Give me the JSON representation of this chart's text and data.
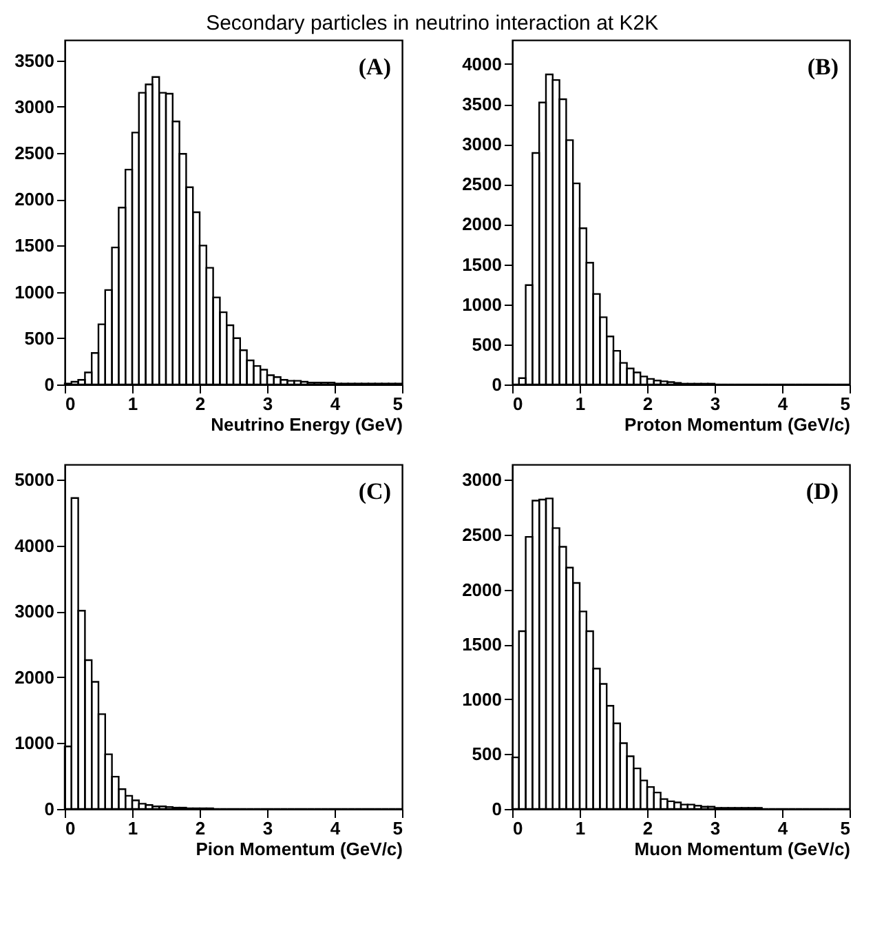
{
  "chart_data": [
    {
      "type": "histogram",
      "title": "Secondary particles in neutrino interaction at K2K",
      "xlabel": "Neutrino Energy  (GeV)",
      "annotations": [
        "(A)"
      ],
      "color": "#000000",
      "bins": [
        0,
        0.1,
        0.2,
        0.3,
        0.4,
        0.5,
        0.6,
        0.7,
        0.8,
        0.9,
        1,
        1.1,
        1.2,
        1.3,
        1.4,
        1.5,
        1.6,
        1.7,
        1.8,
        1.9,
        2,
        2.1,
        2.2,
        2.3,
        2.4,
        2.5,
        2.6,
        2.7,
        2.8,
        2.9,
        3,
        3.1,
        3.2,
        3.3,
        3.4,
        3.5,
        3.6,
        3.7,
        3.8,
        3.9,
        4,
        4.1,
        4.2,
        4.3,
        4.4,
        4.5,
        4.6,
        4.7,
        4.8,
        4.9,
        5
      ],
      "values": [
        10,
        30,
        50,
        130,
        340,
        650,
        1020,
        1480,
        1910,
        2320,
        2720,
        3150,
        3240,
        3320,
        3150,
        3140,
        2840,
        2490,
        2130,
        1860,
        1500,
        1260,
        940,
        780,
        640,
        500,
        370,
        260,
        200,
        160,
        100,
        80,
        50,
        40,
        40,
        30,
        20,
        20,
        20,
        20,
        10,
        10,
        10,
        10,
        10,
        10,
        10,
        10,
        10,
        10
      ],
      "xlim": [
        0,
        5
      ],
      "xticks": [
        0,
        1,
        2,
        3,
        4,
        5
      ],
      "ylim": [
        0,
        3720
      ],
      "yticks": [
        0,
        500,
        1000,
        1500,
        2000,
        2500,
        3000,
        3500
      ]
    },
    {
      "type": "histogram",
      "xlabel": "Proton Momentum  (GeV/c)",
      "annotations": [
        "(B)"
      ],
      "color": "#000000",
      "bins": [
        0,
        0.1,
        0.2,
        0.3,
        0.4,
        0.5,
        0.6,
        0.7,
        0.8,
        0.9,
        1,
        1.1,
        1.2,
        1.3,
        1.4,
        1.5,
        1.6,
        1.7,
        1.8,
        1.9,
        2,
        2.1,
        2.2,
        2.3,
        2.4,
        2.5,
        2.6,
        2.7,
        2.8,
        2.9,
        3,
        3.1,
        3.2,
        3.3,
        3.4,
        3.5,
        3.6,
        3.7,
        3.8,
        3.9,
        4,
        4.1,
        4.2,
        4.3,
        4.4,
        4.5,
        4.6,
        4.7,
        4.8,
        4.9,
        5
      ],
      "values": [
        0,
        80,
        1240,
        2890,
        3520,
        3870,
        3800,
        3560,
        3050,
        2510,
        1950,
        1520,
        1130,
        840,
        600,
        420,
        270,
        200,
        150,
        100,
        70,
        50,
        40,
        30,
        20,
        10,
        10,
        10,
        10,
        10,
        0,
        0,
        0,
        0,
        0,
        0,
        0,
        0,
        0,
        0,
        0,
        0,
        0,
        0,
        0,
        0,
        0,
        0,
        0,
        0
      ],
      "xlim": [
        0,
        5
      ],
      "xticks": [
        0,
        1,
        2,
        3,
        4,
        5
      ],
      "ylim": [
        0,
        4300
      ],
      "yticks": [
        0,
        500,
        1000,
        1500,
        2000,
        2500,
        3000,
        3500,
        4000
      ]
    },
    {
      "type": "histogram",
      "xlabel": "Pion Momentum (GeV/c)",
      "annotations": [
        "(C)"
      ],
      "color": "#000000",
      "bins": [
        0,
        0.1,
        0.2,
        0.3,
        0.4,
        0.5,
        0.6,
        0.7,
        0.8,
        0.9,
        1,
        1.1,
        1.2,
        1.3,
        1.4,
        1.5,
        1.6,
        1.7,
        1.8,
        1.9,
        2,
        2.1,
        2.2,
        2.3,
        2.4,
        2.5,
        2.6,
        2.7,
        2.8,
        2.9,
        3,
        3.1,
        3.2,
        3.3,
        3.4,
        3.5,
        3.6,
        3.7,
        3.8,
        3.9,
        4,
        4.1,
        4.2,
        4.3,
        4.4,
        4.5,
        4.6,
        4.7,
        4.8,
        4.9,
        5
      ],
      "values": [
        950,
        4720,
        3010,
        2260,
        1930,
        1440,
        830,
        490,
        300,
        200,
        130,
        80,
        60,
        40,
        40,
        30,
        20,
        20,
        10,
        10,
        10,
        10,
        0,
        0,
        0,
        0,
        0,
        0,
        0,
        0,
        0,
        0,
        0,
        0,
        0,
        0,
        0,
        0,
        0,
        0,
        0,
        0,
        0,
        0,
        0,
        0,
        0,
        0,
        0,
        0
      ],
      "xlim": [
        0,
        5
      ],
      "xticks": [
        0,
        1,
        2,
        3,
        4,
        5
      ],
      "ylim": [
        0,
        5230
      ],
      "yticks": [
        0,
        1000,
        2000,
        3000,
        4000,
        5000
      ]
    },
    {
      "type": "histogram",
      "xlabel": "Muon Momentum  (GeV/c)",
      "annotations": [
        "(D)"
      ],
      "color": "#000000",
      "bins": [
        0,
        0.1,
        0.2,
        0.3,
        0.4,
        0.5,
        0.6,
        0.7,
        0.8,
        0.9,
        1,
        1.1,
        1.2,
        1.3,
        1.4,
        1.5,
        1.6,
        1.7,
        1.8,
        1.9,
        2,
        2.1,
        2.2,
        2.3,
        2.4,
        2.5,
        2.6,
        2.7,
        2.8,
        2.9,
        3,
        3.1,
        3.2,
        3.3,
        3.4,
        3.5,
        3.6,
        3.7,
        3.8,
        3.9,
        4,
        4.1,
        4.2,
        4.3,
        4.4,
        4.5,
        4.6,
        4.7,
        4.8,
        4.9,
        5
      ],
      "values": [
        470,
        1620,
        2480,
        2810,
        2820,
        2830,
        2560,
        2390,
        2200,
        2060,
        1800,
        1620,
        1280,
        1140,
        940,
        780,
        600,
        480,
        370,
        260,
        200,
        150,
        90,
        70,
        60,
        40,
        40,
        30,
        20,
        20,
        10,
        10,
        10,
        10,
        10,
        10,
        10,
        0,
        0,
        0,
        0,
        0,
        0,
        0,
        0,
        0,
        0,
        0,
        0,
        0
      ],
      "xlim": [
        0,
        5
      ],
      "xticks": [
        0,
        1,
        2,
        3,
        4,
        5
      ],
      "ylim": [
        0,
        3140
      ],
      "yticks": [
        0,
        500,
        1000,
        1500,
        2000,
        2500,
        3000
      ]
    }
  ]
}
